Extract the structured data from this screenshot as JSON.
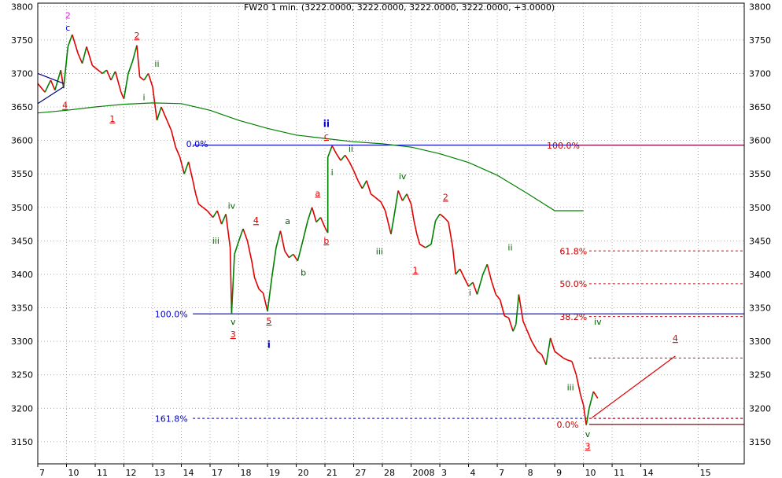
{
  "chart_data": {
    "type": "line",
    "title": "FW20 1 min. (3222.0000, 3222.0000, 3222.0000, 3222.0000, +3.0000)",
    "y_ticks": [
      3800,
      3750,
      3700,
      3650,
      3600,
      3550,
      3500,
      3450,
      3400,
      3350,
      3300,
      3250,
      3200,
      3150
    ],
    "ylim": [
      3117,
      3805
    ],
    "x_ticks": [
      {
        "x": 0,
        "label": "7"
      },
      {
        "x": 1,
        "label": "10"
      },
      {
        "x": 2,
        "label": "11"
      },
      {
        "x": 3,
        "label": "12"
      },
      {
        "x": 4,
        "label": "13"
      },
      {
        "x": 5,
        "label": "14"
      },
      {
        "x": 6,
        "label": "17"
      },
      {
        "x": 7,
        "label": "18"
      },
      {
        "x": 8,
        "label": "19"
      },
      {
        "x": 9,
        "label": "20"
      },
      {
        "x": 10,
        "label": "21"
      },
      {
        "x": 11,
        "label": "27"
      },
      {
        "x": 12,
        "label": "28"
      },
      {
        "x": 13,
        "label": "2008"
      },
      {
        "x": 14,
        "label": "3"
      },
      {
        "x": 15,
        "label": "4"
      },
      {
        "x": 16,
        "label": "7"
      },
      {
        "x": 17,
        "label": "8"
      },
      {
        "x": 18,
        "label": "9"
      },
      {
        "x": 19,
        "label": "10"
      },
      {
        "x": 20,
        "label": "11"
      },
      {
        "x": 21,
        "label": "14"
      },
      {
        "x": 23,
        "label": "15"
      }
    ],
    "xlim": [
      0,
      24.6
    ],
    "grid": true,
    "series": [
      {
        "color": "#e00000",
        "up_color": "#008000",
        "points": [
          [
            0.0,
            3685
          ],
          [
            0.25,
            3672
          ],
          [
            0.45,
            3690
          ],
          [
            0.6,
            3675
          ],
          [
            0.8,
            3705
          ],
          [
            0.9,
            3678
          ],
          [
            1.05,
            3740
          ],
          [
            1.2,
            3758
          ],
          [
            1.4,
            3730
          ],
          [
            1.55,
            3715
          ],
          [
            1.7,
            3740
          ],
          [
            1.9,
            3712
          ],
          [
            2.1,
            3705
          ],
          [
            2.25,
            3700
          ],
          [
            2.4,
            3705
          ],
          [
            2.55,
            3690
          ],
          [
            2.7,
            3703
          ],
          [
            2.9,
            3672
          ],
          [
            3.0,
            3662
          ],
          [
            3.15,
            3700
          ],
          [
            3.3,
            3718
          ],
          [
            3.45,
            3742
          ],
          [
            3.55,
            3695
          ],
          [
            3.7,
            3690
          ],
          [
            3.85,
            3700
          ],
          [
            4.0,
            3680
          ],
          [
            4.15,
            3630
          ],
          [
            4.3,
            3650
          ],
          [
            4.5,
            3630
          ],
          [
            4.65,
            3615
          ],
          [
            4.8,
            3590
          ],
          [
            4.95,
            3575
          ],
          [
            5.1,
            3550
          ],
          [
            5.25,
            3568
          ],
          [
            5.4,
            3540
          ],
          [
            5.5,
            3520
          ],
          [
            5.6,
            3505
          ],
          [
            5.75,
            3500
          ],
          [
            5.9,
            3495
          ],
          [
            6.1,
            3485
          ],
          [
            6.25,
            3495
          ],
          [
            6.4,
            3475
          ],
          [
            6.55,
            3490
          ],
          [
            6.7,
            3440
          ],
          [
            6.75,
            3342
          ],
          [
            6.85,
            3430
          ],
          [
            7.0,
            3450
          ],
          [
            7.15,
            3468
          ],
          [
            7.3,
            3450
          ],
          [
            7.45,
            3420
          ],
          [
            7.55,
            3395
          ],
          [
            7.7,
            3378
          ],
          [
            7.85,
            3372
          ],
          [
            8.0,
            3345
          ],
          [
            8.15,
            3395
          ],
          [
            8.3,
            3440
          ],
          [
            8.45,
            3465
          ],
          [
            8.6,
            3435
          ],
          [
            8.75,
            3425
          ],
          [
            8.9,
            3430
          ],
          [
            9.05,
            3420
          ],
          [
            9.2,
            3445
          ],
          [
            9.4,
            3480
          ],
          [
            9.55,
            3500
          ],
          [
            9.7,
            3478
          ],
          [
            9.85,
            3485
          ],
          [
            10.0,
            3470
          ],
          [
            10.1,
            3462
          ],
          [
            10.1,
            3575
          ],
          [
            10.25,
            3592
          ],
          [
            10.4,
            3580
          ],
          [
            10.55,
            3570
          ],
          [
            10.7,
            3578
          ],
          [
            10.85,
            3568
          ],
          [
            11.0,
            3555
          ],
          [
            11.15,
            3540
          ],
          [
            11.3,
            3528
          ],
          [
            11.45,
            3540
          ],
          [
            11.6,
            3520
          ],
          [
            11.75,
            3515
          ],
          [
            11.95,
            3508
          ],
          [
            12.1,
            3495
          ],
          [
            12.3,
            3460
          ],
          [
            12.4,
            3485
          ],
          [
            12.55,
            3525
          ],
          [
            12.7,
            3510
          ],
          [
            12.85,
            3520
          ],
          [
            13.0,
            3505
          ],
          [
            13.1,
            3480
          ],
          [
            13.2,
            3460
          ],
          [
            13.3,
            3445
          ],
          [
            13.5,
            3440
          ],
          [
            13.7,
            3445
          ],
          [
            13.85,
            3480
          ],
          [
            14.0,
            3490
          ],
          [
            14.15,
            3485
          ],
          [
            14.3,
            3478
          ],
          [
            14.45,
            3440
          ],
          [
            14.55,
            3400
          ],
          [
            14.7,
            3408
          ],
          [
            14.85,
            3395
          ],
          [
            15.0,
            3382
          ],
          [
            15.15,
            3388
          ],
          [
            15.3,
            3370
          ],
          [
            15.5,
            3400
          ],
          [
            15.65,
            3415
          ],
          [
            15.8,
            3390
          ],
          [
            15.95,
            3370
          ],
          [
            16.1,
            3362
          ],
          [
            16.25,
            3338
          ],
          [
            16.4,
            3335
          ],
          [
            16.55,
            3315
          ],
          [
            16.65,
            3325
          ],
          [
            16.75,
            3370
          ],
          [
            16.9,
            3330
          ],
          [
            17.05,
            3315
          ],
          [
            17.2,
            3300
          ],
          [
            17.4,
            3285
          ],
          [
            17.55,
            3280
          ],
          [
            17.7,
            3265
          ],
          [
            17.85,
            3305
          ],
          [
            18.0,
            3285
          ],
          [
            18.15,
            3280
          ],
          [
            18.3,
            3275
          ],
          [
            18.45,
            3272
          ],
          [
            18.6,
            3270
          ],
          [
            18.75,
            3250
          ],
          [
            18.9,
            3220
          ],
          [
            19.0,
            3205
          ],
          [
            19.1,
            3175
          ],
          [
            19.2,
            3200
          ],
          [
            19.35,
            3225
          ],
          [
            19.5,
            3215
          ]
        ]
      },
      {
        "color": "#008000",
        "points": [
          [
            0.0,
            3641
          ],
          [
            1.0,
            3645
          ],
          [
            2.0,
            3650
          ],
          [
            3.0,
            3654
          ],
          [
            4.0,
            3656
          ],
          [
            5.0,
            3655
          ],
          [
            6.0,
            3645
          ],
          [
            7.0,
            3630
          ],
          [
            8.0,
            3618
          ],
          [
            9.0,
            3608
          ],
          [
            10.0,
            3603
          ],
          [
            11.0,
            3598
          ],
          [
            12.0,
            3595
          ],
          [
            13.0,
            3590
          ],
          [
            14.0,
            3580
          ],
          [
            15.0,
            3567
          ],
          [
            16.0,
            3548
          ],
          [
            17.0,
            3522
          ],
          [
            18.0,
            3495
          ],
          [
            19.0,
            3495
          ]
        ]
      }
    ],
    "h_lines": [
      {
        "y": 3593,
        "from_x": 5.4,
        "to_x": 24.6,
        "color": "#0000cc",
        "dash": false
      },
      {
        "y": 3593,
        "from_x": 18.8,
        "to_x": 24.6,
        "color": "#800040",
        "dash": false
      },
      {
        "y": 3341,
        "from_x": 5.4,
        "to_x": 24.6,
        "color": "#0000cc",
        "dash": false
      },
      {
        "y": 3185,
        "from_x": 5.4,
        "to_x": 24.6,
        "color": "#0000cc",
        "dash": true
      },
      {
        "y": 3435,
        "from_x": 19.2,
        "to_x": 24.6,
        "color": "#e00000",
        "dash": true
      },
      {
        "y": 3386,
        "from_x": 19.2,
        "to_x": 24.6,
        "color": "#e00000",
        "dash": true
      },
      {
        "y": 3337,
        "from_x": 19.2,
        "to_x": 24.6,
        "color": "#e00000",
        "dash": true
      },
      {
        "y": 3275,
        "from_x": 19.2,
        "to_x": 24.6,
        "color": "#e00000",
        "dash": true
      },
      {
        "y": 3185,
        "from_x": 19.2,
        "to_x": 24.6,
        "color": "#e00000",
        "dash": true
      },
      {
        "y": 3176,
        "from_x": 19.2,
        "to_x": 24.6,
        "color": "#b00000",
        "dash": false
      }
    ],
    "trend_lines": [
      {
        "x1": 0.0,
        "y1": 3655,
        "x2": 0.9,
        "y2": 3680,
        "color": "#000080"
      },
      {
        "x1": 0.0,
        "y1": 3700,
        "x2": 0.9,
        "y2": 3685,
        "color": "#000080"
      },
      {
        "x1": 19.3,
        "y1": 3186,
        "x2": 22.2,
        "y2": 3278,
        "color": "#e00000"
      }
    ],
    "annotations": [
      {
        "text": "2",
        "x": 1.05,
        "y": 3782,
        "color": "#e020e0"
      },
      {
        "text": "c",
        "x": 1.05,
        "y": 3764,
        "color": "#0000cc"
      },
      {
        "text": "2",
        "x": 3.45,
        "y": 3752,
        "color": "#e00000",
        "underline": true
      },
      {
        "text": "ii",
        "x": 4.15,
        "y": 3710,
        "color": "#006000"
      },
      {
        "text": "4",
        "x": 0.95,
        "y": 3648,
        "color": "#e00000",
        "underline": true
      },
      {
        "text": "1",
        "x": 2.6,
        "y": 3628,
        "color": "#e00000",
        "underline": true
      },
      {
        "text": "i",
        "x": 3.7,
        "y": 3660,
        "color": "#006000"
      },
      {
        "text": "0.0%",
        "x": 5.55,
        "y": 3590,
        "color": "#0000cc"
      },
      {
        "text": "iv",
        "x": 6.75,
        "y": 3498,
        "color": "#006000"
      },
      {
        "text": "4",
        "x": 7.6,
        "y": 3476,
        "color": "#e00000",
        "underline": true
      },
      {
        "text": "iii",
        "x": 6.2,
        "y": 3446,
        "color": "#006000"
      },
      {
        "text": "v",
        "x": 6.8,
        "y": 3325,
        "color": "#006000"
      },
      {
        "text": "3",
        "x": 6.8,
        "y": 3306,
        "color": "#e00000",
        "underline": true
      },
      {
        "text": "5",
        "x": 8.05,
        "y": 3326,
        "color": "#e00000",
        "underline": true
      },
      {
        "text": "i",
        "x": 8.05,
        "y": 3290,
        "color": "#0000cc",
        "bold": true
      },
      {
        "text": "a",
        "x": 8.7,
        "y": 3475,
        "color": "#006000"
      },
      {
        "text": "b",
        "x": 9.25,
        "y": 3398,
        "color": "#006000"
      },
      {
        "text": "a",
        "x": 9.75,
        "y": 3517,
        "color": "#e00000",
        "underline": true
      },
      {
        "text": "b",
        "x": 10.05,
        "y": 3446,
        "color": "#e00000",
        "underline": true
      },
      {
        "text": "ii",
        "x": 10.05,
        "y": 3620,
        "color": "#0000cc",
        "bold": true
      },
      {
        "text": "c",
        "x": 10.05,
        "y": 3602,
        "color": "#e00000",
        "underline": true
      },
      {
        "text": "ii",
        "x": 10.9,
        "y": 3583,
        "color": "#006000"
      },
      {
        "text": "i",
        "x": 10.25,
        "y": 3548,
        "color": "#006000"
      },
      {
        "text": "iv",
        "x": 12.7,
        "y": 3542,
        "color": "#006000"
      },
      {
        "text": "iii",
        "x": 11.9,
        "y": 3430,
        "color": "#006000"
      },
      {
        "text": "2",
        "x": 14.2,
        "y": 3511,
        "color": "#e00000",
        "underline": true
      },
      {
        "text": "1",
        "x": 13.15,
        "y": 3402,
        "color": "#e00000",
        "underline": true
      },
      {
        "text": "i",
        "x": 15.05,
        "y": 3368,
        "color": "#006000"
      },
      {
        "text": "ii",
        "x": 16.45,
        "y": 3436,
        "color": "#006000"
      },
      {
        "text": "iv",
        "x": 19.5,
        "y": 3325,
        "color": "#006000"
      },
      {
        "text": "iii",
        "x": 18.55,
        "y": 3227,
        "color": "#006000"
      },
      {
        "text": "v",
        "x": 19.15,
        "y": 3157,
        "color": "#006000"
      },
      {
        "text": "3",
        "x": 19.15,
        "y": 3139,
        "color": "#e00000",
        "underline": true
      },
      {
        "text": "4",
        "x": 22.2,
        "y": 3300,
        "color": "#e00000",
        "underline": true
      },
      {
        "text": "100.0%",
        "x": 4.65,
        "y": 3336,
        "color": "#0000cc"
      },
      {
        "text": "161.8%",
        "x": 4.65,
        "y": 3180,
        "color": "#0000cc"
      },
      {
        "text": "100.0%",
        "x": 18.3,
        "y": 3588,
        "color": "#c00000"
      },
      {
        "text": "61.8%",
        "x": 18.65,
        "y": 3430,
        "color": "#c00000"
      },
      {
        "text": "50.0%",
        "x": 18.65,
        "y": 3381,
        "color": "#c00000"
      },
      {
        "text": "38.2%",
        "x": 18.65,
        "y": 3332,
        "color": "#c00000"
      },
      {
        "text": "0.0%",
        "x": 18.45,
        "y": 3171,
        "color": "#c00000"
      }
    ]
  }
}
